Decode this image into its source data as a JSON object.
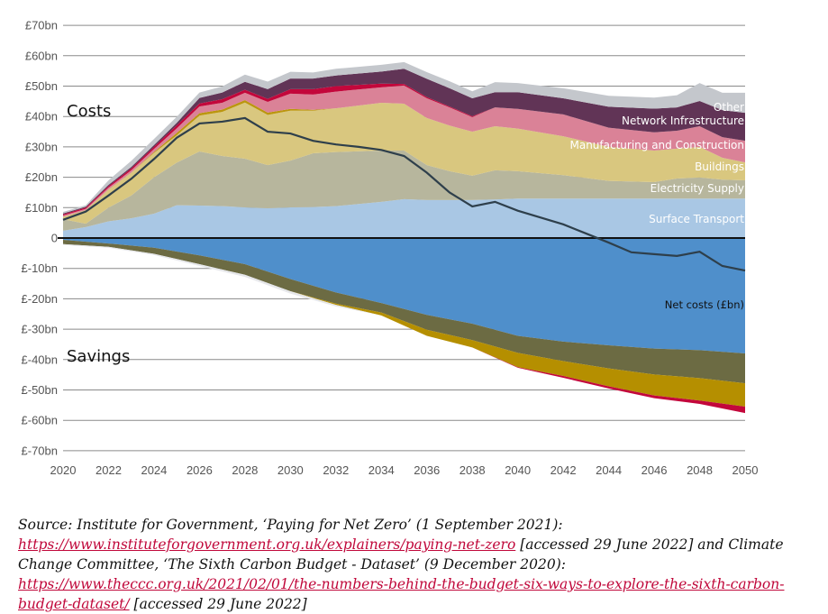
{
  "chart_data": {
    "type": "area",
    "title": "",
    "xlabel": "",
    "ylabel": "",
    "xlim": [
      2020,
      2050
    ],
    "ylim": [
      -70,
      70
    ],
    "grid": true,
    "x_ticks": [
      "2020",
      "2022",
      "2024",
      "2026",
      "2028",
      "2030",
      "2032",
      "2034",
      "2036",
      "2038",
      "2040",
      "2042",
      "2044",
      "2046",
      "2048",
      "2050"
    ],
    "y_ticks": [
      {
        "value": 70,
        "label": "£70bn"
      },
      {
        "value": 60,
        "label": "£60bn"
      },
      {
        "value": 50,
        "label": "£50bn"
      },
      {
        "value": 40,
        "label": "£40bn"
      },
      {
        "value": 30,
        "label": "£30bn"
      },
      {
        "value": 20,
        "label": "£20bn"
      },
      {
        "value": 10,
        "label": "£10bn"
      },
      {
        "value": 0,
        "label": "0"
      },
      {
        "value": -10,
        "label": "£-10bn"
      },
      {
        "value": -20,
        "label": "£-20bn"
      },
      {
        "value": -30,
        "label": "£-30bn"
      },
      {
        "value": -40,
        "label": "£-40bn"
      },
      {
        "value": -50,
        "label": "£-50bn"
      },
      {
        "value": -60,
        "label": "£-60bn"
      },
      {
        "value": -70,
        "label": "£-70bn"
      }
    ],
    "annotations": {
      "costs": "Costs",
      "savings": "Savings"
    },
    "cost_x": [
      2020,
      2021,
      2022,
      2023,
      2024,
      2025,
      2026,
      2027,
      2028,
      2029,
      2030,
      2031,
      2032,
      2034,
      2035,
      2036,
      2037,
      2038,
      2039,
      2040,
      2042,
      2044,
      2046,
      2047,
      2048,
      2049,
      2050
    ],
    "cost_series": [
      {
        "name": "Surface Transport",
        "color": "#a9c7e4",
        "values": [
          2.4,
          3.6,
          5.5,
          6.5,
          8,
          10.8,
          10.7,
          10.5,
          10.1,
          9.8,
          10.1,
          10.2,
          10.5,
          11.9,
          12.8,
          12.5,
          12.5,
          12.5,
          12.7,
          13,
          13,
          13,
          13,
          13,
          13,
          13,
          13
        ]
      },
      {
        "name": "Electricity Supply",
        "color": "#b7b69d",
        "values": [
          3.8,
          1.1,
          4.5,
          7.5,
          12,
          14,
          17.8,
          16.5,
          16,
          14.2,
          15.4,
          17.7,
          17.8,
          16.9,
          16,
          11.5,
          9.5,
          8,
          9.6,
          9,
          7.7,
          5.8,
          5.4,
          6.6,
          6.9,
          6.2,
          6
        ]
      },
      {
        "name": "Buildings",
        "color": "#d9c77f",
        "values": [
          0.8,
          4.5,
          6,
          7.5,
          8,
          9,
          11.8,
          14.5,
          18.5,
          16.5,
          16.4,
          14,
          14.4,
          15.7,
          15.4,
          15.5,
          15,
          14.5,
          14.5,
          14,
          12.8,
          11.2,
          10.4,
          9.8,
          10.1,
          7.2,
          5.9
        ]
      },
      {
        "name": "",
        "color": "#bb960f",
        "values": [
          0,
          0,
          0,
          0,
          0.3,
          0.8,
          0.8,
          0.8,
          0.8,
          0.8,
          0.6,
          0.3,
          0,
          0,
          0,
          0,
          0,
          0,
          0,
          0,
          0,
          0,
          0,
          0,
          0,
          0,
          0
        ]
      },
      {
        "name": "Manufacturing and Construction",
        "color": "#da8297",
        "values": [
          0.4,
          0.4,
          0.6,
          0.8,
          1,
          1.5,
          2.2,
          2.2,
          2.4,
          3.5,
          5,
          5,
          5.5,
          5.1,
          6,
          6.5,
          6,
          4.8,
          6.2,
          6.5,
          7.2,
          6.3,
          6,
          5.9,
          6.8,
          6.8,
          7.1
        ]
      },
      {
        "name": "",
        "color": "#c3073b",
        "values": [
          0.4,
          0.4,
          0.5,
          0.6,
          0.7,
          1,
          1,
          1.2,
          1,
          1,
          1.5,
          1.8,
          1.8,
          1.2,
          0.5,
          0.4,
          0.3,
          0.3,
          0,
          0,
          0,
          0,
          0,
          0,
          0,
          0,
          0
        ]
      },
      {
        "name": "Network Infrastructure",
        "color": "#613456",
        "values": [
          0.3,
          0.3,
          0.4,
          0.5,
          0.6,
          0.8,
          1.8,
          2.2,
          2.6,
          3.2,
          3.5,
          3.5,
          3.5,
          4,
          5,
          6,
          6,
          5.9,
          5,
          5.5,
          5.3,
          6.9,
          7.8,
          7.7,
          8.3,
          8.9,
          9.2
        ]
      },
      {
        "name": "Other",
        "color": "#c4c7cc",
        "values": [
          0.5,
          0.5,
          1.5,
          2,
          2,
          2,
          1.8,
          2,
          2.4,
          2.5,
          2.2,
          2,
          2.2,
          2.2,
          2.2,
          2.2,
          2.3,
          2.3,
          3.3,
          3,
          3.3,
          3.6,
          3.6,
          4,
          5.9,
          5.7,
          6.6
        ]
      }
    ],
    "saving_x": [
      2020,
      2022,
      2024,
      2026,
      2028,
      2030,
      2032,
      2034,
      2036,
      2038,
      2040,
      2042,
      2044,
      2046,
      2048,
      2050
    ],
    "saving_series": [
      {
        "name": "",
        "color": "#4f8fcb",
        "values": [
          -0.6,
          -1.8,
          -3.2,
          -5.7,
          -8.6,
          -13.5,
          -17.9,
          -21.4,
          -25.3,
          -28.2,
          -32.2,
          -34.1,
          -35.3,
          -36.4,
          -36.9,
          -38
        ]
      },
      {
        "name": "",
        "color": "#6c6b43",
        "values": [
          -1.4,
          -1.1,
          -2,
          -2.9,
          -3.5,
          -4,
          -3.7,
          -3.1,
          -4.9,
          -5.4,
          -5.6,
          -6.4,
          -7.6,
          -8.5,
          -9.2,
          -9.8
        ]
      },
      {
        "name": "",
        "color": "#b58f00",
        "values": [
          0,
          0,
          0,
          0,
          0,
          0,
          -0.4,
          -1,
          -2,
          -2.4,
          -4.7,
          -4.9,
          -5.9,
          -6.9,
          -7.4,
          -7.7
        ]
      },
      {
        "name": "",
        "color": "#c3073b",
        "values": [
          0,
          0,
          0,
          0,
          0,
          0,
          0,
          0,
          0,
          0,
          -0.2,
          -0.6,
          -0.7,
          -0.9,
          -1.1,
          -2.1
        ]
      },
      {
        "name": "",
        "color": "#e6e7ea",
        "values": [
          -0.3,
          -0.3,
          -0.4,
          -0.6,
          -0.7,
          -0.8,
          -0.5,
          0,
          0,
          0,
          0,
          0,
          0,
          0,
          0,
          0
        ]
      }
    ],
    "net_line": {
      "name": "Net costs (£bn)",
      "color": "#2e3f4b",
      "x": [
        2020,
        2021,
        2022,
        2023,
        2024,
        2025,
        2026,
        2027,
        2028,
        2029,
        2030,
        2031,
        2032,
        2033,
        2034,
        2035,
        2036,
        2037,
        2038,
        2039,
        2040,
        2042,
        2043,
        2044,
        2045,
        2046,
        2047,
        2048,
        2049,
        2050
      ],
      "values": [
        6,
        8.7,
        14,
        19.5,
        26,
        33,
        37.7,
        38.3,
        39.5,
        35,
        34.4,
        32,
        30.8,
        30,
        29,
        27,
        21.5,
        15,
        10.4,
        11.9,
        9,
        4.5,
        1.5,
        -1.5,
        -4.7,
        -5.3,
        -5.9,
        -4.5,
        -9.2,
        -10.7
      ]
    }
  },
  "source": {
    "prefix": "Source: Institute for Government, ‘Paying for Net Zero’ (1 September 2021): ",
    "link1": "https://www.instituteforgovernment.org.uk/explainers/paying-net-zero",
    "mid": " [accessed 29 June 2022] and Climate Change Committee, ‘The Sixth Carbon Budget - Dataset’ (9 December 2020): ",
    "link2": "https://www.theccc.org.uk/2021/02/01/the-numbers-behind-the-budget-six-ways-to-explore-the-sixth-carbon-budget-dataset/",
    "suffix": " [accessed 29 June 2022]"
  }
}
